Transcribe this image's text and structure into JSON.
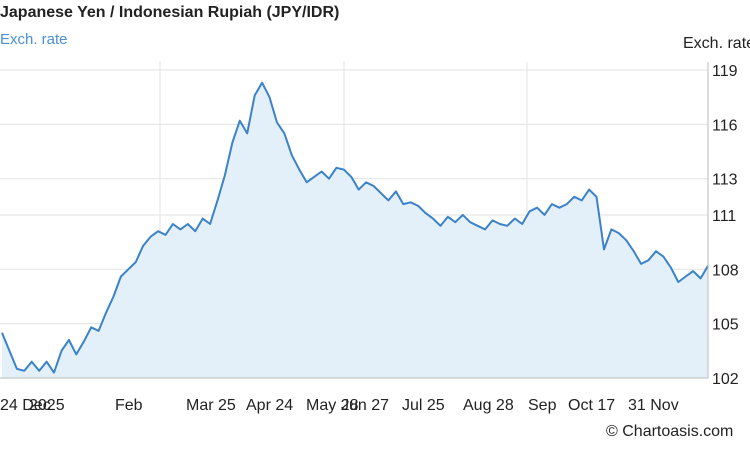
{
  "chart_data": {
    "type": "area",
    "title": "Japanese Yen / Indonesian Rupiah (JPY/IDR)",
    "series_label": "Exch. rate",
    "ylabel": "Exch. rate",
    "ylim": [
      102,
      119
    ],
    "yticks": [
      "119",
      "116",
      "113",
      "111",
      "108",
      "105",
      "102"
    ],
    "xticks": [
      "24 Dec",
      "2025",
      "Feb",
      "Mar 25",
      "Apr 24",
      "May 28",
      "Jun 27",
      "Jul 25",
      "Aug 28",
      "Sep",
      "Oct 17",
      "31 Nov"
    ],
    "grid": true,
    "colors": {
      "line": "#3b82c9",
      "fill": "#e3f0fa",
      "grid": "#e2e2e2",
      "label": "#4a8fd4"
    },
    "series": [
      {
        "values": [
          104.5,
          103.5,
          102.5,
          102.4,
          102.9,
          102.4,
          102.9,
          102.3,
          103.5,
          104.1,
          103.3,
          104.0,
          104.8,
          104.6,
          105.6,
          106.5,
          107.6,
          108.0,
          108.4,
          109.3,
          109.8,
          110.1,
          109.9,
          110.5,
          110.2,
          110.5,
          110.1,
          110.8,
          110.5,
          111.8,
          113.2,
          115.0,
          116.2,
          115.5,
          117.6,
          118.3,
          117.5,
          116.1,
          115.5,
          114.3,
          113.5,
          112.8,
          113.1,
          113.4,
          113.0,
          113.6,
          113.5,
          113.1,
          112.4,
          112.8,
          112.6,
          112.2,
          111.8,
          112.3,
          111.6,
          111.7,
          111.5,
          111.1,
          110.8,
          110.4,
          110.9,
          110.6,
          111.0,
          110.6,
          110.4,
          110.2,
          110.7,
          110.5,
          110.4,
          110.8,
          110.5,
          111.2,
          111.4,
          111.0,
          111.6,
          111.4,
          111.6,
          112.0,
          111.8,
          112.4,
          112.0,
          109.1,
          110.2,
          110.0,
          109.6,
          109.0,
          108.3,
          108.5,
          109.0,
          108.7,
          108.1,
          107.3,
          107.6,
          107.9,
          107.5,
          108.2
        ]
      }
    ]
  },
  "credit": "© Chartoasis.com"
}
